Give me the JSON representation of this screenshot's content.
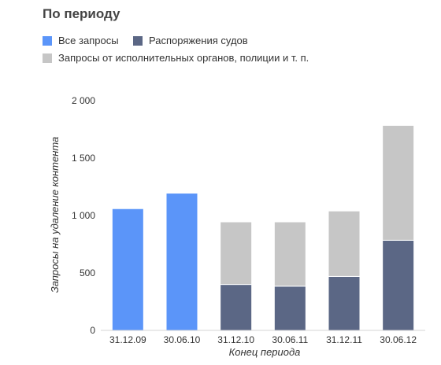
{
  "colors": {
    "all_requests": "#5b95f9",
    "court_orders": "#5b6785",
    "executive_requests": "#c6c6c6"
  },
  "chart_data": {
    "type": "bar",
    "title": "По периоду",
    "xlabel": "Конец периода",
    "ylabel": "Запросы на удаление контента",
    "ylim": [
      0,
      2000
    ],
    "yticks": [
      0,
      500,
      1000,
      1500,
      2000
    ],
    "ytick_labels": [
      "0",
      "500",
      "1 000",
      "1 500",
      "2 000"
    ],
    "categories": [
      "31.12.09",
      "30.06.10",
      "31.12.10",
      "30.06.11",
      "31.12.11",
      "30.06.12"
    ],
    "legend_position": "top",
    "series": [
      {
        "name": "Все запросы",
        "values": [
          1060,
          1195,
          null,
          null,
          null,
          null
        ]
      },
      {
        "name": "Распоряжения судов",
        "values": [
          null,
          null,
          400,
          385,
          470,
          785
        ]
      },
      {
        "name": "Запросы от исполнительных органов, полиции и т. п.",
        "values": [
          null,
          null,
          545,
          560,
          570,
          1000
        ]
      }
    ]
  }
}
